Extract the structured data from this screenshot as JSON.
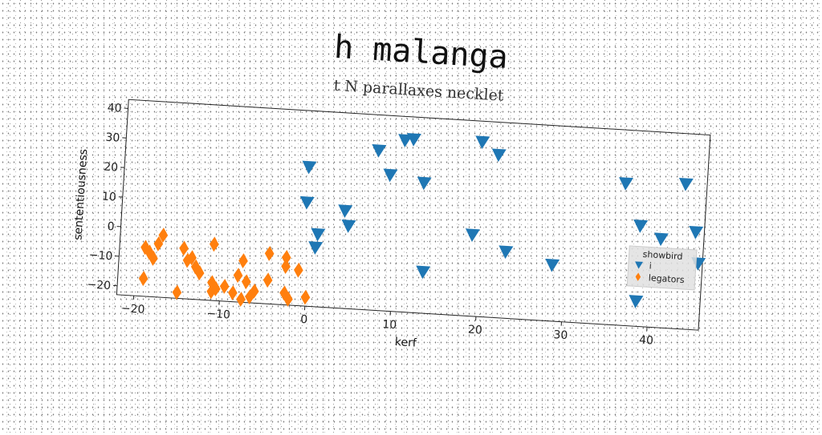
{
  "chart_data": {
    "type": "scatter",
    "title": "h malanga",
    "subtitle": "t N parallaxes necklet",
    "xlabel": "kerf",
    "ylabel": "sententiousness",
    "xlim": [
      -22,
      46
    ],
    "ylim": [
      -23,
      43
    ],
    "xticks": [
      -20,
      -10,
      0,
      10,
      20,
      30,
      40
    ],
    "yticks": [
      -20,
      -10,
      0,
      10,
      20,
      30,
      40
    ],
    "legend": {
      "title": "showbird",
      "placement": "right"
    },
    "grid": false,
    "series": [
      {
        "name": "i",
        "marker": "triangle-down",
        "color": "#1f77b4",
        "points": [
          [
            -0.5,
            24
          ],
          [
            -0.5,
            12
          ],
          [
            1,
            1.5
          ],
          [
            0.8,
            -3
          ],
          [
            4,
            10
          ],
          [
            4.5,
            5
          ],
          [
            7.5,
            31
          ],
          [
            9,
            23
          ],
          [
            10.5,
            35
          ],
          [
            11.5,
            35.5
          ],
          [
            13,
            21
          ],
          [
            13.5,
            -9
          ],
          [
            19,
            4.5
          ],
          [
            19.5,
            36
          ],
          [
            21.5,
            32
          ],
          [
            23,
            -0.5
          ],
          [
            28.5,
            -4
          ],
          [
            36.5,
            25
          ],
          [
            38.5,
            11
          ],
          [
            38.5,
            -14.5
          ],
          [
            41,
            7
          ],
          [
            43.5,
            26
          ],
          [
            45,
            10
          ],
          [
            45.5,
            -0.5
          ]
        ]
      },
      {
        "name": "legators",
        "marker": "thin-diamond",
        "color": "#ff7f0e",
        "points": [
          [
            -19,
            -6.5
          ],
          [
            -19,
            -17
          ],
          [
            -18.5,
            -8
          ],
          [
            -18,
            -10
          ],
          [
            -17.5,
            -5
          ],
          [
            -17,
            -2
          ],
          [
            -15,
            -21
          ],
          [
            -14.5,
            -6
          ],
          [
            -14,
            -10
          ],
          [
            -13.5,
            -9
          ],
          [
            -13,
            -12
          ],
          [
            -12.5,
            -14
          ],
          [
            -11,
            -4
          ],
          [
            -11,
            -17
          ],
          [
            -11,
            -20
          ],
          [
            -10.5,
            -19
          ],
          [
            -9.5,
            -18
          ],
          [
            -8.5,
            -20
          ],
          [
            -8,
            -14
          ],
          [
            -7.5,
            -22
          ],
          [
            -7.5,
            -9
          ],
          [
            -7,
            -16
          ],
          [
            -6.5,
            -21
          ],
          [
            -6,
            -19
          ],
          [
            -4.5,
            -15
          ],
          [
            -4.5,
            -6
          ],
          [
            -2.5,
            -7
          ],
          [
            -2.5,
            -10
          ],
          [
            -2.5,
            -19
          ],
          [
            -2,
            -21
          ],
          [
            -1,
            -11
          ],
          [
            0,
            -20
          ]
        ]
      }
    ]
  }
}
